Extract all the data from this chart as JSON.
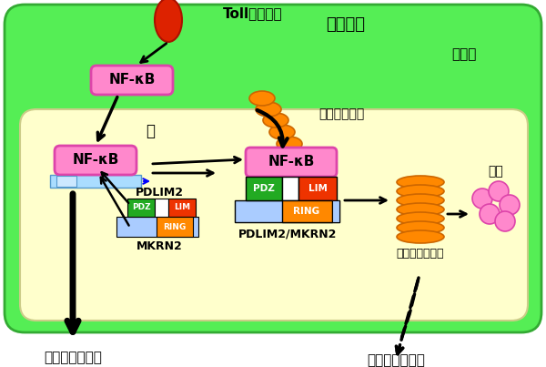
{
  "bg_color": "#ffffff",
  "outer_cell_color": "#55ee55",
  "outer_cell_edge": "#33aa33",
  "inner_nucleus_color": "#ffffcc",
  "inner_nucleus_edge": "#cccc88",
  "nfkb_box_color": "#ff88cc",
  "nfkb_edge_color": "#dd44aa",
  "nfkb_text": "NF-κB",
  "pdz_color": "#22aa22",
  "lim_color": "#ee3300",
  "ring_color": "#ff8800",
  "mkrn2_bar_color": "#aaccff",
  "ubiquitin_color": "#ff8800",
  "ubiquitin_edge": "#cc6600",
  "proteasome_color": "#ff8800",
  "proteasome_edge": "#cc6600",
  "small_circle_color": "#ff88cc",
  "small_circle_edge": "#dd44aa",
  "tlr_color": "#dd2200",
  "tlr_edge": "#aa1100",
  "dna_color": "#aaddff",
  "dna_edge": "#5599cc",
  "title_jp_tlr": "Toll様受容体",
  "title_jp_dc": "樹状細胞",
  "label_cytoplasm": "細胞質",
  "label_nucleus": "核",
  "label_pdlim2": "PDLIM2",
  "label_mkrn2": "MKRN2",
  "label_pdlim2_mkrn2": "PDLIM2/MKRN2",
  "label_ubiquitin": "ユビキチン化",
  "label_proteasome": "プロテアソーム",
  "label_degradation": "分解",
  "label_induction": "炎症反応の誘導",
  "label_resolution": "炎症反応の収束",
  "pdz_text": "PDZ",
  "lim_text": "LIM",
  "ring_text": "RING"
}
